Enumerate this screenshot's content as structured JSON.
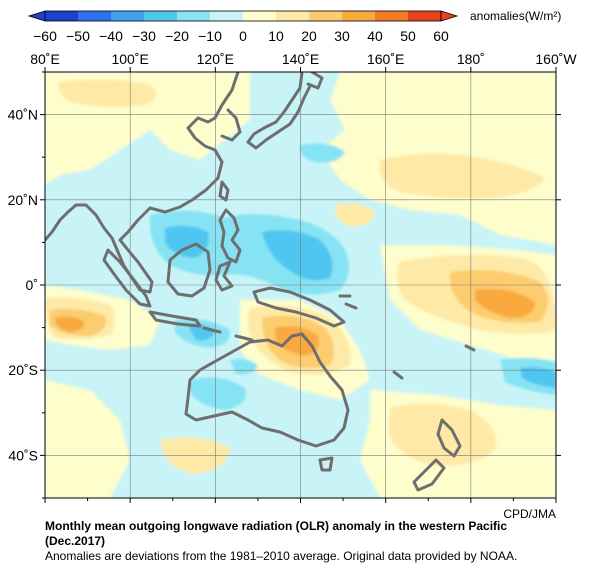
{
  "colorbar": {
    "unit_label": "anomalies(W/m²)",
    "ticks": [
      "−60",
      "−50",
      "−40",
      "−30",
      "−20",
      "−10",
      "0",
      "10",
      "20",
      "30",
      "40",
      "50",
      "60"
    ],
    "colors": [
      "#1f3fcf",
      "#2e6ff0",
      "#3ea0f2",
      "#4fc6f0",
      "#86e3f3",
      "#c8f4f7",
      "#fefdcc",
      "#feeaa6",
      "#fccc6e",
      "#f9a93e",
      "#f27b1f",
      "#e8421a"
    ]
  },
  "map": {
    "lon_labels": [
      "80˚E",
      "100˚E",
      "120˚E",
      "140˚E",
      "160˚E",
      "180˚",
      "160˚W"
    ],
    "lat_labels": [
      "40˚N",
      "20˚N",
      "0˚",
      "20˚S",
      "40˚S"
    ],
    "coastline_color": "#6e6e6e",
    "land_color": "#ffffff"
  },
  "chart_data": {
    "type": "heatmap",
    "title": "Monthly mean outgoing longwave radiation (OLR) anomaly in the western Pacific",
    "period": "(Dec.2017)",
    "lon_range": [
      80,
      200
    ],
    "lat_range": [
      -50,
      50
    ],
    "value_range": [
      -60,
      60
    ],
    "regions": [
      {
        "name": "maritime-continent-negative",
        "lon": 128,
        "lat": 8,
        "value": -25
      },
      {
        "name": "philippine-sea-negative",
        "lon": 140,
        "lat": 10,
        "value": -30
      },
      {
        "name": "south-china-sea-negative",
        "lon": 117,
        "lat": 10,
        "value": -30
      },
      {
        "name": "north-australia-positive",
        "lon": 138,
        "lat": -13,
        "value": 35
      },
      {
        "name": "central-pacific-positive",
        "lon": 190,
        "lat": -3,
        "value": 35
      },
      {
        "name": "indian-ocean-positive",
        "lon": 85,
        "lat": -9,
        "value": 25
      },
      {
        "name": "north-pacific-positive",
        "lon": 178,
        "lat": 28,
        "value": 15
      }
    ]
  },
  "footer": {
    "credit": "CPD/JMA",
    "title_line1": "Monthly mean outgoing longwave radiation (OLR) anomaly in the western Pacific",
    "title_line2": "(Dec.2017)",
    "note": "Anomalies are deviations from the 1981–2010 average. Original data provided by NOAA."
  }
}
